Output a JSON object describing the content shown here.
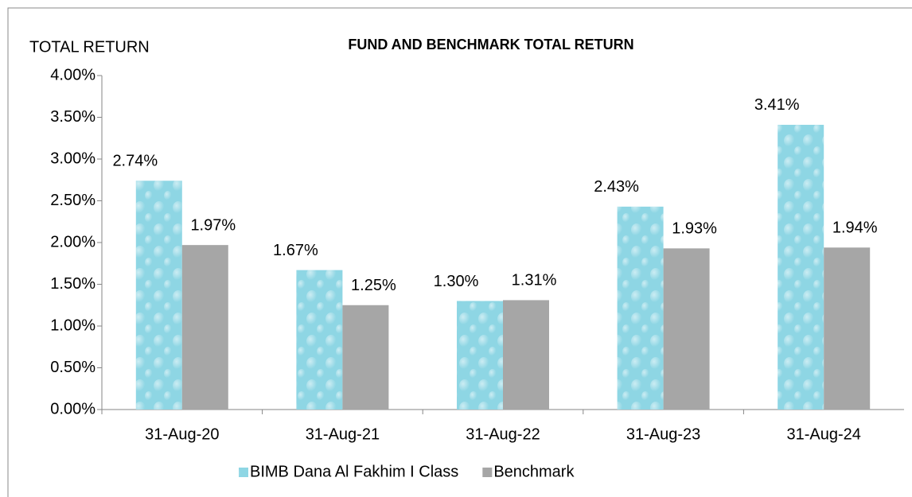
{
  "chart_data": {
    "type": "bar",
    "title": "FUND AND BENCHMARK TOTAL RETURN",
    "y_label": "TOTAL RETURN",
    "categories": [
      "31-Aug-20",
      "31-Aug-21",
      "31-Aug-22",
      "31-Aug-23",
      "31-Aug-24"
    ],
    "series": [
      {
        "name": "BIMB Dana Al Fakhim I Class",
        "color": "#8ed6e4",
        "values": [
          2.74,
          1.67,
          1.3,
          2.43,
          3.41
        ],
        "value_labels": [
          "2.74%",
          "1.67%",
          "1.30%",
          "2.43%",
          "3.41%"
        ]
      },
      {
        "name": "Benchmark",
        "color": "#a6a6a6",
        "values": [
          1.97,
          1.25,
          1.31,
          1.93,
          1.94
        ],
        "value_labels": [
          "1.97%",
          "1.25%",
          "1.31%",
          "1.93%",
          "1.94%"
        ]
      }
    ],
    "ylim": [
      0,
      4
    ],
    "yticks": [
      {
        "value": 0,
        "label": "0.00%"
      },
      {
        "value": 0.5,
        "label": "0.50%"
      },
      {
        "value": 1,
        "label": "1.00%"
      },
      {
        "value": 1.5,
        "label": "1.50%"
      },
      {
        "value": 2,
        "label": "2.00%"
      },
      {
        "value": 2.5,
        "label": "2.50%"
      },
      {
        "value": 3,
        "label": "3.00%"
      },
      {
        "value": 3.5,
        "label": "3.50%"
      },
      {
        "value": 4,
        "label": "4.00%"
      }
    ],
    "grid": false,
    "legend": "bottom"
  }
}
